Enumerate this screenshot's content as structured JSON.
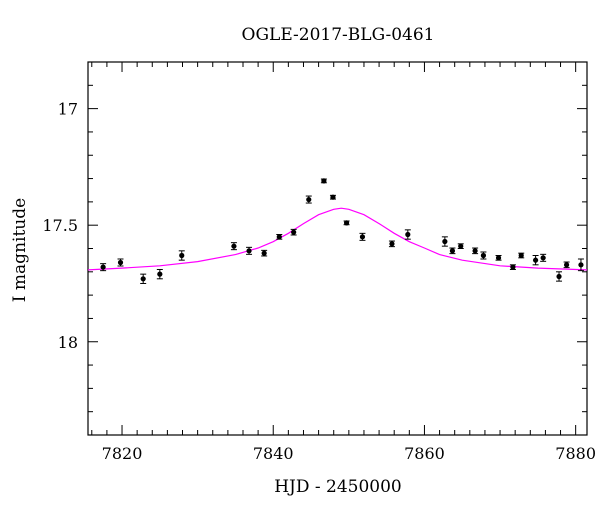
{
  "chart_data": {
    "type": "scatter",
    "title": "OGLE-2017-BLG-0461",
    "xlabel": "HJD - 2450000",
    "ylabel": "I magnitude",
    "xlim": [
      7815.5,
      7881.5
    ],
    "ylim": [
      18.4,
      16.8
    ],
    "y_inverted": true,
    "x_major_ticks": [
      7820,
      7840,
      7860,
      7880
    ],
    "y_major_ticks": [
      17,
      17.5,
      18
    ],
    "x_tick_labels": [
      "7820",
      "7840",
      "7860",
      "7880"
    ],
    "y_tick_labels": [
      "17",
      "17.5",
      "18"
    ],
    "grid": false,
    "legend": "none",
    "series": [
      {
        "kind": "points_with_errorbars",
        "color": "#000000",
        "x": [
          7817.5,
          7819.8,
          7822.8,
          7825.0,
          7827.9,
          7834.8,
          7836.8,
          7838.8,
          7840.8,
          7842.7,
          7844.7,
          7846.7,
          7847.9,
          7849.7,
          7851.8,
          7855.7,
          7857.8,
          7862.7,
          7863.7,
          7864.8,
          7866.7,
          7867.8,
          7869.8,
          7871.7,
          7872.8,
          7874.7,
          7875.7,
          7877.8,
          7878.8,
          7880.7
        ],
        "y": [
          17.68,
          17.66,
          17.73,
          17.71,
          17.63,
          17.59,
          17.61,
          17.62,
          17.55,
          17.53,
          17.39,
          17.31,
          17.38,
          17.49,
          17.55,
          17.58,
          17.54,
          17.57,
          17.61,
          17.59,
          17.61,
          17.63,
          17.64,
          17.68,
          17.63,
          17.65,
          17.64,
          17.72,
          17.67,
          17.67
        ],
        "yerr": [
          0.015,
          0.015,
          0.02,
          0.02,
          0.02,
          0.015,
          0.015,
          0.012,
          0.01,
          0.012,
          0.015,
          0.008,
          0.008,
          0.008,
          0.015,
          0.012,
          0.02,
          0.02,
          0.012,
          0.01,
          0.012,
          0.015,
          0.01,
          0.01,
          0.01,
          0.02,
          0.015,
          0.02,
          0.012,
          0.025
        ]
      },
      {
        "kind": "model_curve",
        "color": "#ff00ff",
        "x": [
          7815.5,
          7820,
          7825,
          7830,
          7835,
          7838,
          7840,
          7842,
          7844,
          7846,
          7848,
          7849,
          7850,
          7852,
          7854,
          7856,
          7858,
          7860,
          7862,
          7865,
          7870,
          7875,
          7881.5
        ],
        "y": [
          17.692,
          17.684,
          17.674,
          17.656,
          17.626,
          17.598,
          17.571,
          17.535,
          17.493,
          17.455,
          17.432,
          17.427,
          17.432,
          17.455,
          17.493,
          17.535,
          17.571,
          17.598,
          17.626,
          17.65,
          17.674,
          17.684,
          17.692
        ]
      }
    ]
  }
}
